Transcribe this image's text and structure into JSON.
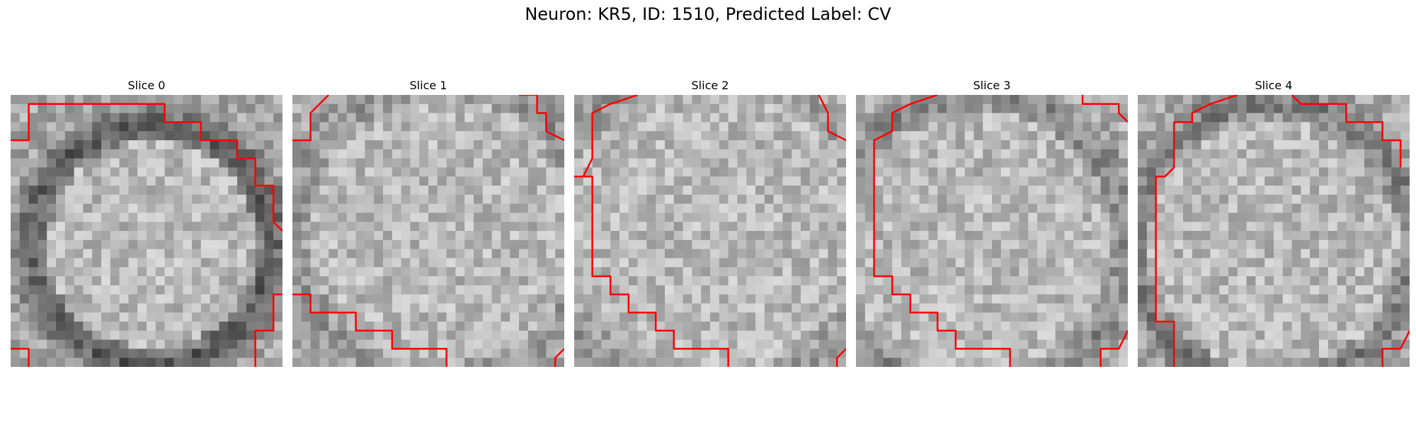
{
  "figure": {
    "title": "Neuron: KR5, ID: 1510, Predicted Label: CV"
  },
  "panels": [
    {
      "title": "Slice 0",
      "seed": 11,
      "center": [
        0.52,
        0.55
      ],
      "radius": 0.44,
      "dark_ring": 0.85
    },
    {
      "title": "Slice 1",
      "seed": 23,
      "center": [
        0.55,
        0.5
      ],
      "radius": 0.55,
      "dark_ring": 0.35
    },
    {
      "title": "Slice 2",
      "seed": 37,
      "center": [
        0.5,
        0.5
      ],
      "radius": 0.6,
      "dark_ring": 0.3
    },
    {
      "title": "Slice 3",
      "seed": 51,
      "center": [
        0.45,
        0.55
      ],
      "radius": 0.55,
      "dark_ring": 0.45
    },
    {
      "title": "Slice 4",
      "seed": 67,
      "center": [
        0.5,
        0.55
      ],
      "radius": 0.52,
      "dark_ring": 0.55
    }
  ],
  "colors": {
    "contour": "#ff0000"
  }
}
